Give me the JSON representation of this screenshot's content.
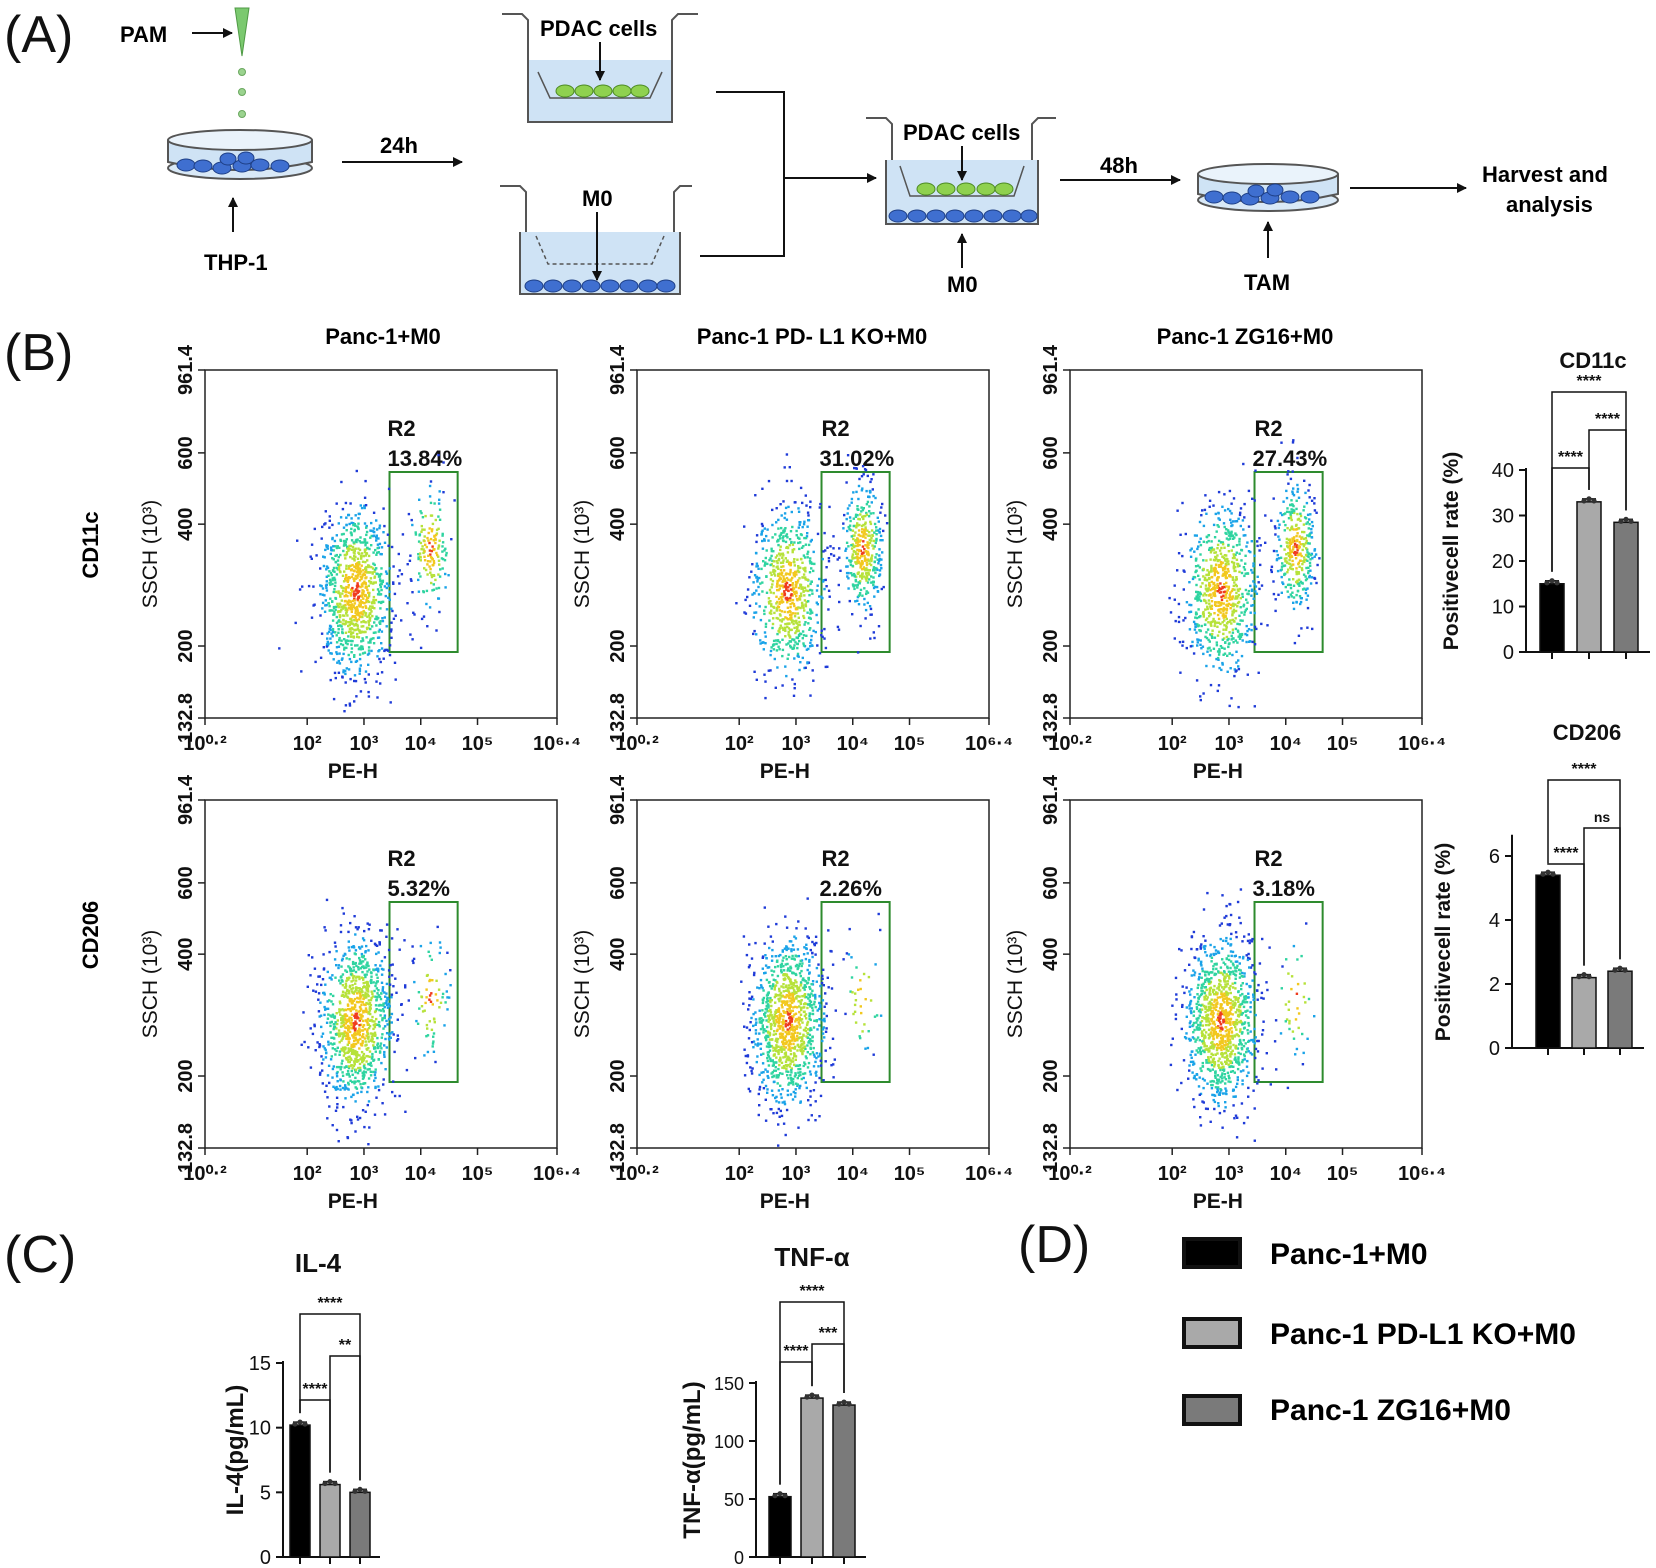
{
  "colors": {
    "black": "#000000",
    "grey1": "#a9a9a9",
    "grey2": "#7a7a7a",
    "gate": "#2e8b2e",
    "dish": "#cfe3f5",
    "cell_blue": "#3f6fd0",
    "cell_green": "#8fd14f"
  },
  "panel_letters": {
    "a": "(A)",
    "b": "(B)",
    "c": "(C)",
    "d": "(D)"
  },
  "schematic": {
    "pam": "PAM",
    "thp1": "THP-1",
    "t24": "24h",
    "pdac_top": "PDAC cells",
    "m0_well": "M0",
    "pdac_co": "PDAC cells",
    "m0_bottom": "M0",
    "t48": "48h",
    "tam": "TAM",
    "harvest_line1": "Harvest and",
    "harvest_line2": "analysis"
  },
  "flow": {
    "col_titles": [
      "Panc-1+M0",
      "Panc-1 PD- L1 KO+M0",
      "Panc-1 ZG16+M0"
    ],
    "row_labels": [
      "CD11c",
      "CD206"
    ],
    "ylabel": "SSCH (10³)",
    "xlabel": "PE-H",
    "xticks": [
      "10⁰·²",
      "10²",
      "10³",
      "10⁴",
      "10⁵",
      "10⁶·⁴"
    ],
    "xtick_values": [
      0.2,
      2,
      3,
      4,
      5,
      6.4
    ],
    "yticks": [
      "132.8",
      "200",
      "400",
      "600",
      "961.4"
    ],
    "ytick_values": [
      132.8,
      200,
      400,
      600,
      961.4
    ],
    "gate_name": "R2",
    "gates": [
      [
        "13.84%",
        "31.02%",
        "27.43%"
      ],
      [
        "5.32%",
        "2.26%",
        "3.18%"
      ]
    ]
  },
  "chart_data": [
    {
      "type": "bar",
      "title": "CD11c",
      "ylabel": "Positivecell rate (%)",
      "categories": [
        "Panc-1+M0",
        "Panc-1 PD-L1 KO+M0",
        "Panc-1 ZG16+M0"
      ],
      "values": [
        15,
        33,
        28.5
      ],
      "ylim": [
        0,
        40
      ],
      "yticks": [
        0,
        10,
        20,
        30,
        40
      ],
      "significance": [
        {
          "from": 0,
          "to": 1,
          "label": "****"
        },
        {
          "from": 1,
          "to": 2,
          "label": "****"
        },
        {
          "from": 0,
          "to": 2,
          "label": "****"
        }
      ]
    },
    {
      "type": "bar",
      "title": "CD206",
      "ylabel": "Positivecell rate (%)",
      "categories": [
        "Panc-1+M0",
        "Panc-1 PD-L1 KO+M0",
        "Panc-1 ZG16+M0"
      ],
      "values": [
        5.4,
        2.2,
        2.4
      ],
      "ylim": [
        0,
        6.6
      ],
      "yticks": [
        0,
        2,
        4,
        6
      ],
      "significance": [
        {
          "from": 0,
          "to": 1,
          "label": "****"
        },
        {
          "from": 1,
          "to": 2,
          "label": "ns"
        },
        {
          "from": 0,
          "to": 2,
          "label": "****"
        }
      ]
    },
    {
      "type": "bar",
      "title": "IL-4",
      "ylabel": "IL-4(pg/mL)",
      "categories": [
        "Panc-1+M0",
        "Panc-1 PD-L1 KO+M0",
        "Panc-1 ZG16+M0"
      ],
      "values": [
        10.2,
        5.6,
        5.0
      ],
      "ylim": [
        0,
        15
      ],
      "yticks": [
        0,
        5,
        10,
        15
      ],
      "significance": [
        {
          "from": 0,
          "to": 1,
          "label": "****"
        },
        {
          "from": 1,
          "to": 2,
          "label": "**"
        },
        {
          "from": 0,
          "to": 2,
          "label": "****"
        }
      ]
    },
    {
      "type": "bar",
      "title": "TNF-α",
      "ylabel": "TNF-α(pg/mL)",
      "categories": [
        "Panc-1+M0",
        "Panc-1 PD-L1 KO+M0",
        "Panc-1 ZG16+M0"
      ],
      "values": [
        52,
        137,
        131
      ],
      "ylim": [
        0,
        150
      ],
      "yticks": [
        0,
        50,
        100,
        150
      ],
      "significance": [
        {
          "from": 0,
          "to": 1,
          "label": "****"
        },
        {
          "from": 1,
          "to": 2,
          "label": "***"
        },
        {
          "from": 0,
          "to": 2,
          "label": "****"
        }
      ]
    }
  ],
  "legend": {
    "entries": [
      "Panc-1+M0",
      "Panc-1 PD-L1 KO+M0",
      "Panc-1 ZG16+M0"
    ]
  }
}
